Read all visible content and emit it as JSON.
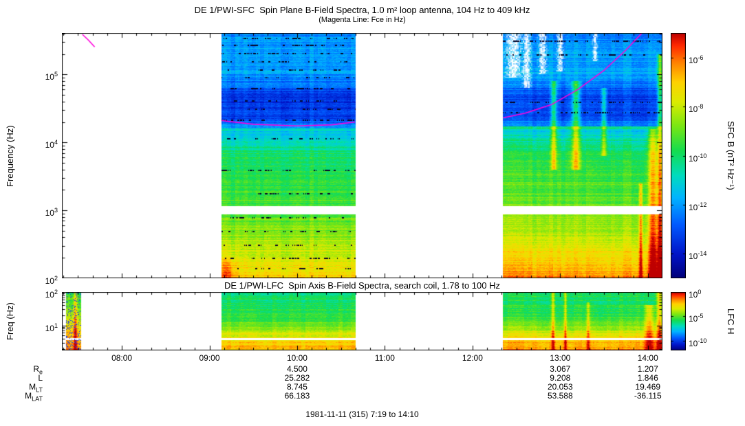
{
  "chart_data": {
    "type": "heatmap",
    "title": "DE 1/PWI-SFC  Spin Plane B-Field Spectra, 1.0 m² loop antenna, 104 Hz to 409 kHz",
    "subtitle": "(Magenta Line: Fce in Hz)",
    "log_base": "10",
    "time_range_hours": [
      7.3167,
      14.1667
    ],
    "time_axis": {
      "tick_labels": [
        "08:00",
        "09:00",
        "10:00",
        "11:00",
        "12:00",
        "13:00",
        "14:00"
      ],
      "tick_hours": [
        8,
        9,
        10,
        11,
        12,
        13,
        14
      ]
    },
    "colormap_stops": [
      [
        0.0,
        [
          0,
          0,
          120
        ]
      ],
      [
        0.1,
        [
          0,
          20,
          200
        ]
      ],
      [
        0.22,
        [
          0,
          90,
          255
        ]
      ],
      [
        0.33,
        [
          0,
          180,
          255
        ]
      ],
      [
        0.42,
        [
          0,
          220,
          190
        ]
      ],
      [
        0.52,
        [
          20,
          220,
          80
        ]
      ],
      [
        0.62,
        [
          120,
          230,
          20
        ]
      ],
      [
        0.72,
        [
          220,
          235,
          0
        ]
      ],
      [
        0.8,
        [
          255,
          210,
          0
        ]
      ],
      [
        0.88,
        [
          255,
          130,
          0
        ]
      ],
      [
        0.95,
        [
          255,
          40,
          0
        ]
      ],
      [
        1.0,
        [
          190,
          0,
          0
        ]
      ]
    ],
    "panels": [
      {
        "id": "sfc",
        "ylabel": "Frequency (Hz)",
        "colorbar_label": "SFC B (nT² Hz⁻¹)",
        "freq_range_hz": [
          100,
          409000
        ],
        "ytick_exponents": [
          5,
          4,
          3,
          2
        ],
        "colorbar_range_log10": [
          -5,
          -15
        ],
        "colorbar_tick_exponents": [
          -6,
          -8,
          -10,
          -12,
          -14
        ],
        "gap_bands_hz": [
          [
            880,
            1150
          ]
        ],
        "fce_lines": [
          {
            "points_t_hz": [
              [
                7.55,
                390000
              ],
              [
                7.62,
                320000
              ],
              [
                7.69,
                255000
              ]
            ]
          },
          {
            "points_t_hz": [
              [
                9.14,
                21000
              ],
              [
                9.5,
                18500
              ],
              [
                10.0,
                17500
              ],
              [
                10.4,
                18200
              ],
              [
                10.66,
                20000
              ]
            ]
          },
          {
            "points_t_hz": [
              [
                12.35,
                23000
              ],
              [
                12.6,
                27000
              ],
              [
                12.9,
                36000
              ],
              [
                13.2,
                60000
              ],
              [
                13.5,
                115000
              ],
              [
                13.75,
                230000
              ],
              [
                13.95,
                430000
              ]
            ]
          }
        ],
        "blocks": [
          {
            "t_start": 9.14,
            "t_end": 10.67,
            "seed": 1,
            "profile": [
              [
                2.0,
                0.8
              ],
              [
                2.35,
                0.71
              ],
              [
                2.7,
                0.63
              ],
              [
                3.05,
                0.57
              ],
              [
                3.5,
                0.53
              ],
              [
                3.85,
                0.49
              ],
              [
                4.05,
                0.4
              ],
              [
                4.2,
                0.33
              ],
              [
                4.35,
                0.18
              ],
              [
                4.68,
                0.15
              ],
              [
                4.85,
                0.25
              ],
              [
                5.05,
                0.31
              ],
              [
                5.35,
                0.3
              ],
              [
                5.62,
                0.28
              ]
            ],
            "hlines": [
              {
                "lf": 4.19,
                "hw": 0.02,
                "v": 0.43
              }
            ],
            "blobs": [
              {
                "t": 9.2,
                "tw": 0.09,
                "lf": 2.05,
                "lfw": 0.25,
                "dv": 0.15
              }
            ],
            "vstreaks": [],
            "white_patches": [],
            "speckle_lfs": [
              5.54,
              5.44,
              5.32,
              5.2,
              5.08,
              4.96,
              4.8,
              4.62,
              4.5,
              4.34,
              4.06,
              3.6,
              3.25,
              2.9,
              2.7,
              2.5,
              2.3,
              2.15
            ]
          },
          {
            "t_start": 12.35,
            "t_end": 14.1667,
            "seed": 2,
            "profile": [
              [
                2.0,
                0.86
              ],
              [
                2.35,
                0.77
              ],
              [
                2.7,
                0.67
              ],
              [
                3.1,
                0.6
              ],
              [
                3.5,
                0.56
              ],
              [
                3.85,
                0.51
              ],
              [
                4.05,
                0.44
              ],
              [
                4.2,
                0.35
              ],
              [
                4.35,
                0.2
              ],
              [
                4.68,
                0.17
              ],
              [
                4.85,
                0.26
              ],
              [
                5.05,
                0.32
              ],
              [
                5.35,
                0.3
              ],
              [
                5.62,
                0.27
              ]
            ],
            "hlines": [
              {
                "lf": 4.22,
                "hw": 0.02,
                "v": 0.45
              }
            ],
            "blobs": [],
            "vstreaks": [
              {
                "t": 12.93,
                "tw": 0.03,
                "lf_min": 3.6,
                "lf_max": 4.9,
                "dv": 0.3
              },
              {
                "t": 13.18,
                "tw": 0.05,
                "lf_min": 3.6,
                "lf_max": 4.9,
                "dv": 0.28
              },
              {
                "t": 13.5,
                "tw": 0.03,
                "lf_min": 3.8,
                "lf_max": 4.8,
                "dv": 0.22
              },
              {
                "t": 13.92,
                "tw": 0.02,
                "lf_min": 2.0,
                "lf_max": 3.4,
                "dv": 0.25
              },
              {
                "t": 14.06,
                "tw": 0.05,
                "lf_min": 2.0,
                "lf_max": 4.2,
                "dv": 0.28
              },
              {
                "t": 14.14,
                "tw": 0.03,
                "lf_min": 2.0,
                "lf_max": 5.3,
                "dv": 0.33
              }
            ],
            "white_patches": [
              {
                "t": 12.47,
                "tw": 0.1,
                "lf_min": 4.95,
                "lf_max": 5.62
              },
              {
                "t": 12.62,
                "tw": 0.05,
                "lf_min": 4.8,
                "lf_max": 5.62
              },
              {
                "t": 12.8,
                "tw": 0.05,
                "lf_min": 5.0,
                "lf_max": 5.62
              },
              {
                "t": 13.0,
                "tw": 0.04,
                "lf_min": 5.05,
                "lf_max": 5.62
              },
              {
                "t": 13.4,
                "tw": 0.03,
                "lf_min": 5.2,
                "lf_max": 5.62
              }
            ],
            "speckle_lfs": [
              5.5,
              5.3,
              4.6,
              4.45
            ]
          }
        ]
      },
      {
        "id": "lfc",
        "title": "DE 1/PWI-LFC  Spin Axis B-Field Spectra, search coil, 1.78 to 100 Hz",
        "ylabel": "Freq (Hz)",
        "colorbar_label": "LFC H",
        "freq_range_hz": [
          1.78,
          100
        ],
        "ytick_exponents": [
          2,
          1
        ],
        "colorbar_range_log10": [
          0,
          -12
        ],
        "colorbar_tick_exponents": [
          0,
          -5,
          -10
        ],
        "gap_bands_hz": [
          [
            3.7,
            4.1
          ]
        ],
        "fce_lines": [],
        "blocks": [
          {
            "t_start": 7.36,
            "t_end": 7.54,
            "seed": 3,
            "blue_speckles": true,
            "profile": [
              [
                0.25,
                0.88
              ],
              [
                0.7,
                0.82
              ],
              [
                1.1,
                0.72
              ],
              [
                1.5,
                0.62
              ],
              [
                2.0,
                0.56
              ]
            ],
            "vstreaks": [
              {
                "t": 7.47,
                "tw": 0.02,
                "lf_min": 0.25,
                "lf_max": 2.0,
                "dv": 0.2
              }
            ]
          },
          {
            "t_start": 9.14,
            "t_end": 10.67,
            "seed": 4,
            "profile": [
              [
                0.25,
                0.84
              ],
              [
                0.5,
                0.8
              ],
              [
                0.75,
                0.72
              ],
              [
                1.0,
                0.6
              ],
              [
                1.3,
                0.53
              ],
              [
                1.7,
                0.5
              ],
              [
                2.0,
                0.5
              ]
            ]
          },
          {
            "t_start": 12.35,
            "t_end": 14.1667,
            "seed": 5,
            "profile": [
              [
                0.25,
                0.86
              ],
              [
                0.5,
                0.82
              ],
              [
                0.75,
                0.74
              ],
              [
                1.0,
                0.62
              ],
              [
                1.3,
                0.54
              ],
              [
                1.7,
                0.51
              ],
              [
                2.0,
                0.5
              ]
            ],
            "vstreaks": [
              {
                "t": 12.92,
                "tw": 0.02,
                "lf_min": 0.25,
                "lf_max": 2.0,
                "dv": 0.22
              },
              {
                "t": 13.06,
                "tw": 0.015,
                "lf_min": 0.25,
                "lf_max": 2.0,
                "dv": 0.22
              },
              {
                "t": 13.32,
                "tw": 0.02,
                "lf_min": 0.25,
                "lf_max": 1.7,
                "dv": 0.18
              },
              {
                "t": 14.02,
                "tw": 0.05,
                "lf_min": 0.25,
                "lf_max": 1.6,
                "dv": 0.22
              },
              {
                "t": 14.13,
                "tw": 0.03,
                "lf_min": 0.25,
                "lf_max": 2.0,
                "dv": 0.25
              }
            ]
          }
        ]
      }
    ]
  },
  "ephemeris": {
    "rows": [
      {
        "main": "R",
        "sub": "e"
      },
      {
        "main": "L",
        "sub": ""
      },
      {
        "main": "M",
        "sub": "LT"
      },
      {
        "main": "M",
        "sub": "LAT"
      }
    ],
    "columns": [
      {
        "hour": 10,
        "values": [
          "4.500",
          "25.282",
          "8.745",
          "66.183"
        ]
      },
      {
        "hour": 13,
        "values": [
          "3.067",
          "9.208",
          "20.053",
          "53.588"
        ]
      },
      {
        "hour": 14,
        "values": [
          "1.207",
          "1.846",
          "19.469",
          "-36.115"
        ]
      }
    ]
  },
  "footer": "1981-11-11 (315) 7:19 to 14:10"
}
